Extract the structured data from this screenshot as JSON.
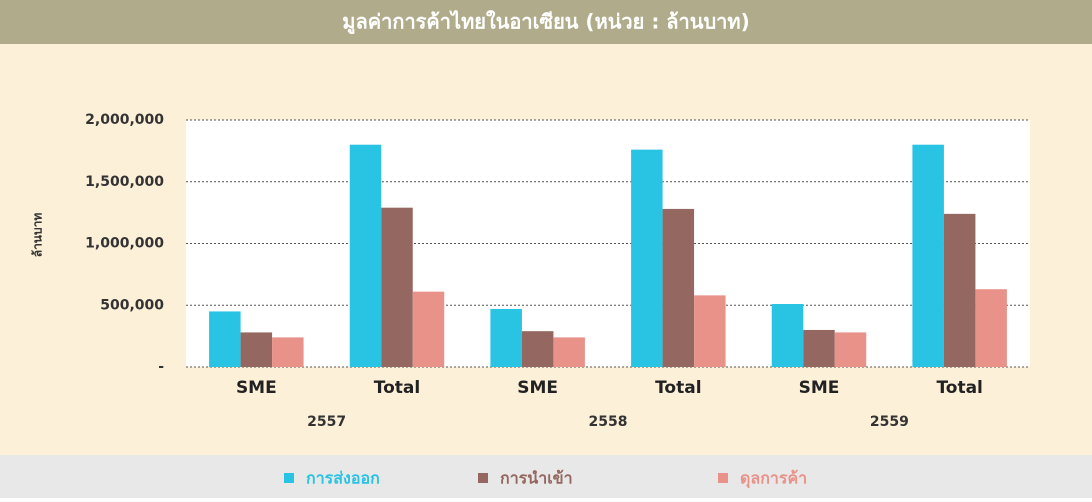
{
  "chart_data": {
    "type": "bar",
    "title": "มูลค่าการค้าไทยในอาเซียน (หน่วย : ล้านบาท)",
    "y_label": "ล้านบาท",
    "categories": [
      "SME",
      "Total",
      "SME",
      "Total",
      "SME",
      "Total"
    ],
    "groups": [
      "2557",
      "2558",
      "2559"
    ],
    "series": [
      {
        "name": "การส่งออก",
        "color": "#29c3e3",
        "values": [
          450000,
          1800000,
          470000,
          1760000,
          510000,
          1800000
        ]
      },
      {
        "name": "การนำเข้า",
        "color": "#946760",
        "values": [
          280000,
          1290000,
          290000,
          1280000,
          300000,
          1240000
        ]
      },
      {
        "name": "ดุลการค้า",
        "color": "#e8928a",
        "values": [
          240000,
          610000,
          240000,
          580000,
          280000,
          630000
        ]
      }
    ],
    "ylim": [
      0,
      2000000
    ],
    "yticks": [
      {
        "value": 0,
        "label": "-"
      },
      {
        "value": 500000,
        "label": "500,000"
      },
      {
        "value": 1000000,
        "label": "1,000,000"
      },
      {
        "value": 1500000,
        "label": "1,500,000"
      },
      {
        "value": 2000000,
        "label": "2,000,000"
      }
    ],
    "grid": true,
    "legend": "bottom"
  }
}
